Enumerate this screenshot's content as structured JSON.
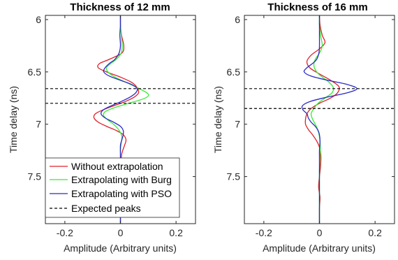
{
  "colors": {
    "without": "#e0202a",
    "burg": "#33ee33",
    "pso": "#2a2ac8",
    "expected": "#000000"
  },
  "chart_data": [
    {
      "type": "line",
      "orientation": "vertical-time",
      "title": "Thickness of 12  mm",
      "xlabel": "Amplitude (Arbitrary units)",
      "ylabel": "Time delay (ns)",
      "xlim": [
        -0.27,
        0.27
      ],
      "ylim": [
        5.96,
        7.95
      ],
      "y_reversed": true,
      "xticks": [
        "-0.2",
        "0",
        "0.2"
      ],
      "xtick_values": [
        -0.2,
        0,
        0.2
      ],
      "yticks": [
        "6",
        "6.5",
        "7",
        "7.5"
      ],
      "ytick_values": [
        6,
        6.5,
        7,
        7.5
      ],
      "expected_peaks": [
        6.66,
        6.8
      ],
      "legend": {
        "placement": "bottom-left",
        "entries": [
          {
            "label": "Without extrapolation",
            "series": "without"
          },
          {
            "label": "Extrapolating with Burg",
            "series": "burg"
          },
          {
            "label": "Extrapolating with PSO",
            "series": "pso"
          },
          {
            "label": "Expected peaks",
            "series": "expected"
          }
        ]
      },
      "series": [
        {
          "key": "without",
          "name": "Without extrapolation",
          "t": [
            5.96,
            6.05,
            6.15,
            6.25,
            6.32,
            6.38,
            6.42,
            6.46,
            6.5,
            6.55,
            6.6,
            6.65,
            6.7,
            6.74,
            6.78,
            6.82,
            6.86,
            6.9,
            6.94,
            6.98,
            7.02,
            7.06,
            7.1,
            7.15,
            7.2,
            7.28,
            7.36,
            7.45,
            7.6,
            7.8,
            7.95
          ],
          "a": [
            0,
            0.0,
            0.004,
            0.012,
            0.005,
            -0.04,
            -0.075,
            -0.08,
            -0.05,
            0.0,
            0.04,
            0.06,
            0.065,
            0.05,
            0.02,
            -0.02,
            -0.06,
            -0.09,
            -0.095,
            -0.08,
            -0.05,
            -0.015,
            0.01,
            0.02,
            0.015,
            0.005,
            0.002,
            0,
            0.0,
            0,
            0
          ]
        },
        {
          "key": "burg",
          "name": "Extrapolating with Burg",
          "t": [
            5.96,
            6.05,
            6.15,
            6.25,
            6.32,
            6.38,
            6.42,
            6.46,
            6.5,
            6.55,
            6.6,
            6.65,
            6.7,
            6.73,
            6.76,
            6.8,
            6.84,
            6.88,
            6.92,
            6.96,
            7.0,
            7.04,
            7.08,
            7.12,
            7.18,
            7.25,
            7.35,
            7.5,
            7.7,
            7.95
          ],
          "a": [
            0,
            0.0,
            0.003,
            0.006,
            0.003,
            -0.015,
            -0.035,
            -0.05,
            -0.045,
            -0.02,
            0.02,
            0.06,
            0.095,
            0.1,
            0.08,
            0.03,
            -0.02,
            -0.055,
            -0.06,
            -0.045,
            -0.025,
            -0.01,
            0.0,
            0.005,
            0.003,
            0.0,
            0,
            0,
            0,
            0
          ]
        },
        {
          "key": "pso",
          "name": "Extrapolating with PSO",
          "t": [
            5.96,
            6.05,
            6.15,
            6.25,
            6.32,
            6.38,
            6.42,
            6.46,
            6.5,
            6.54,
            6.58,
            6.62,
            6.66,
            6.7,
            6.74,
            6.78,
            6.82,
            6.86,
            6.9,
            6.94,
            6.98,
            7.02,
            7.06,
            7.1,
            7.15,
            7.2,
            7.3,
            7.5,
            7.7,
            7.95
          ],
          "a": [
            0,
            0.0,
            -0.002,
            0.0,
            -0.005,
            -0.02,
            -0.04,
            -0.055,
            -0.06,
            -0.04,
            0.0,
            0.04,
            0.06,
            0.055,
            0.035,
            0.005,
            -0.03,
            -0.06,
            -0.07,
            -0.055,
            -0.025,
            0.0,
            0.01,
            0.01,
            0.005,
            0.0,
            0,
            0,
            0,
            0
          ]
        }
      ]
    },
    {
      "type": "line",
      "orientation": "vertical-time",
      "title": "Thickness of 16  mm",
      "xlabel": "Amplitude (Arbitrary units)",
      "ylabel": "Time delay (ns)",
      "xlim": [
        -0.27,
        0.27
      ],
      "ylim": [
        5.96,
        7.95
      ],
      "y_reversed": true,
      "xticks": [
        "-0.2",
        "0",
        "0.2"
      ],
      "xtick_values": [
        -0.2,
        0,
        0.2
      ],
      "yticks": [
        "6",
        "6.5",
        "7",
        "7.5"
      ],
      "ytick_values": [
        6,
        6.5,
        7,
        7.5
      ],
      "expected_peaks": [
        6.66,
        6.85
      ],
      "series": [
        {
          "key": "without",
          "name": "Without extrapolation",
          "t": [
            5.96,
            6.05,
            6.15,
            6.22,
            6.28,
            6.34,
            6.4,
            6.46,
            6.52,
            6.58,
            6.64,
            6.7,
            6.75,
            6.8,
            6.85,
            6.9,
            6.95,
            7.0,
            7.05,
            7.1,
            7.16,
            7.22,
            7.3,
            7.4,
            7.5,
            7.6,
            7.7,
            7.8,
            7.95
          ],
          "a": [
            0,
            0.002,
            0.01,
            0.02,
            0.0,
            -0.03,
            -0.045,
            -0.035,
            0.0,
            0.04,
            0.07,
            0.065,
            0.04,
            0.0,
            -0.03,
            -0.045,
            -0.05,
            -0.05,
            -0.04,
            -0.025,
            -0.01,
            0.0,
            0.005,
            0.004,
            0.0,
            -0.003,
            0.002,
            0,
            0
          ]
        },
        {
          "key": "burg",
          "name": "Extrapolating with Burg",
          "t": [
            5.96,
            6.05,
            6.15,
            6.25,
            6.32,
            6.38,
            6.44,
            6.5,
            6.55,
            6.6,
            6.65,
            6.7,
            6.75,
            6.8,
            6.85,
            6.9,
            6.95,
            7.0,
            7.06,
            7.12,
            7.2,
            7.3,
            7.45,
            7.6,
            7.8,
            7.95
          ],
          "a": [
            0,
            0.0,
            0.004,
            0.01,
            0.0,
            -0.015,
            -0.02,
            -0.01,
            0.01,
            0.035,
            0.05,
            0.045,
            0.02,
            -0.005,
            -0.02,
            -0.03,
            -0.025,
            -0.015,
            -0.005,
            0.0,
            0.003,
            0.002,
            0,
            0,
            0,
            0
          ]
        },
        {
          "key": "pso",
          "name": "Extrapolating with PSO",
          "t": [
            5.96,
            6.05,
            6.15,
            6.25,
            6.32,
            6.38,
            6.42,
            6.46,
            6.5,
            6.54,
            6.58,
            6.62,
            6.66,
            6.7,
            6.74,
            6.78,
            6.82,
            6.86,
            6.9,
            6.94,
            6.98,
            7.02,
            7.06,
            7.1,
            7.16,
            7.25,
            7.35,
            7.5,
            7.7,
            7.95
          ],
          "a": [
            0,
            0.0,
            0.0,
            0.0,
            -0.002,
            -0.01,
            -0.025,
            -0.045,
            -0.055,
            -0.03,
            0.03,
            0.1,
            0.135,
            0.1,
            0.03,
            -0.03,
            -0.06,
            -0.06,
            -0.045,
            -0.04,
            -0.03,
            -0.015,
            -0.005,
            0.0,
            0.002,
            0.0,
            0,
            0,
            0,
            0
          ]
        }
      ]
    }
  ]
}
